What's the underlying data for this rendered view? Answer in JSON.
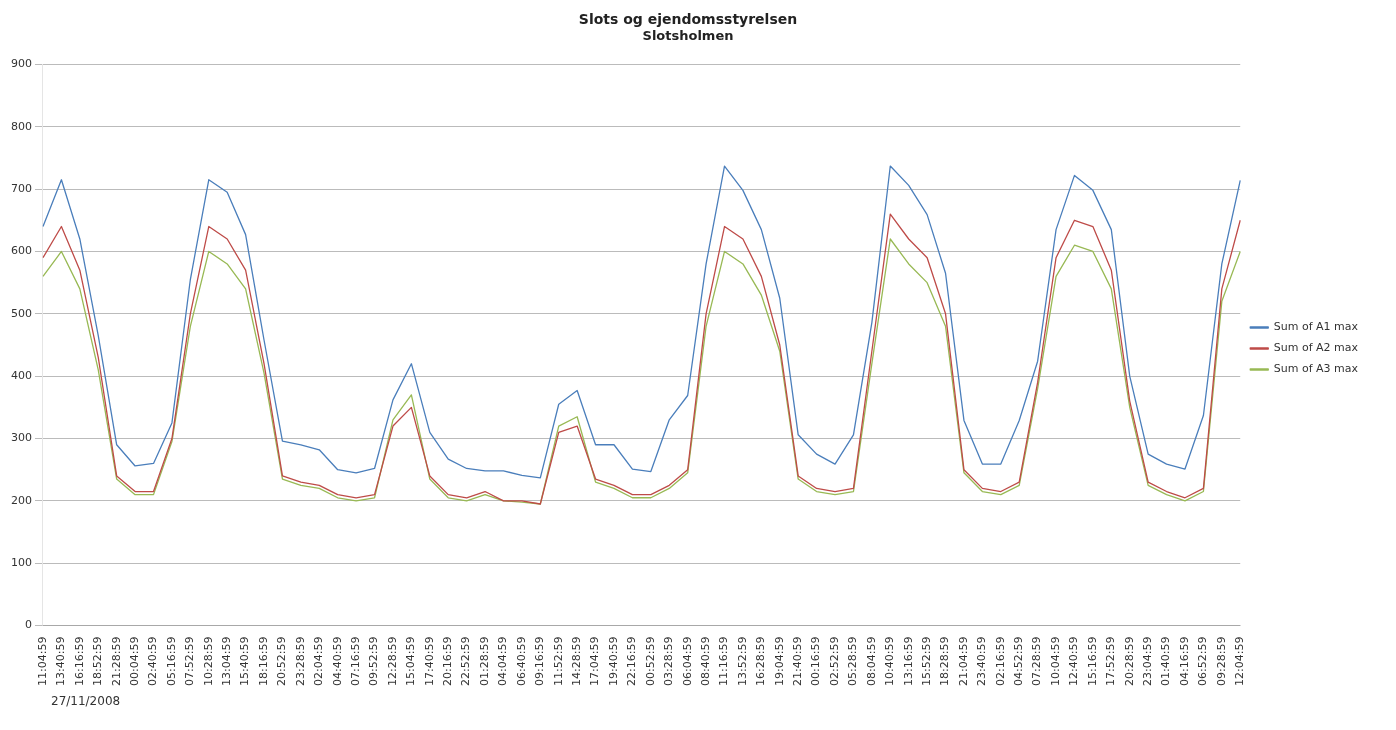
{
  "chart_data": {
    "type": "line",
    "title": "Slots og ejendomsstyrelsen",
    "subtitle": "Slotsholmen",
    "categories": [
      "11:04:59",
      "13:40:59",
      "16:16:59",
      "18:52:59",
      "21:28:59",
      "00:04:59",
      "02:40:59",
      "05:16:59",
      "07:52:59",
      "10:28:59",
      "13:04:59",
      "15:40:59",
      "18:16:59",
      "20:52:59",
      "23:28:59",
      "02:04:59",
      "04:40:59",
      "07:16:59",
      "09:52:59",
      "12:28:59",
      "15:04:59",
      "17:40:59",
      "20:16:59",
      "22:52:59",
      "01:28:59",
      "04:04:59",
      "06:40:59",
      "09:16:59",
      "11:52:59",
      "14:28:59",
      "17:04:59",
      "19:40:59",
      "22:16:59",
      "00:52:59",
      "03:28:59",
      "06:04:59",
      "08:40:59",
      "11:16:59",
      "13:52:59",
      "16:28:59",
      "19:04:59",
      "21:40:59",
      "00:16:59",
      "02:52:59",
      "05:28:59",
      "08:04:59",
      "10:40:59",
      "13:16:59",
      "15:52:59",
      "18:28:59",
      "21:04:59",
      "23:40:59",
      "02:16:59",
      "04:52:59",
      "07:28:59",
      "10:04:59",
      "12:40:59",
      "15:16:59",
      "17:52:59",
      "20:28:59",
      "23:04:59",
      "01:40:59",
      "04:16:59",
      "06:52:59",
      "09:28:59",
      "12:04:59"
    ],
    "series": [
      {
        "name": "Sum of A1 max",
        "color": "#4a7ebb",
        "values": [
          640,
          715,
          620,
          465,
          290,
          256,
          260,
          325,
          555,
          715,
          695,
          627,
          458,
          296,
          290,
          282,
          250,
          245,
          252,
          362,
          420,
          310,
          267,
          252,
          248,
          248,
          241,
          237,
          355,
          377,
          290,
          290,
          251,
          247,
          330,
          369,
          580,
          737,
          698,
          635,
          525,
          306,
          275,
          259,
          306,
          486,
          737,
          706,
          659,
          565,
          329,
          259,
          259,
          329,
          424,
          635,
          722,
          698,
          635,
          400,
          275,
          259,
          251,
          337,
          580,
          714
        ]
      },
      {
        "name": "Sum of A2 max",
        "color": "#be4b48",
        "values": [
          590,
          640,
          570,
          430,
          240,
          215,
          215,
          300,
          500,
          640,
          620,
          570,
          420,
          240,
          230,
          225,
          210,
          205,
          210,
          320,
          350,
          240,
          210,
          205,
          215,
          200,
          200,
          195,
          310,
          320,
          235,
          225,
          210,
          210,
          225,
          250,
          500,
          640,
          620,
          560,
          450,
          240,
          220,
          215,
          220,
          440,
          660,
          620,
          590,
          500,
          250,
          220,
          215,
          230,
          390,
          590,
          650,
          640,
          570,
          360,
          230,
          215,
          205,
          220,
          540,
          650
        ]
      },
      {
        "name": "Sum of A3 max",
        "color": "#98b954",
        "values": [
          560,
          600,
          540,
          410,
          235,
          210,
          210,
          295,
          480,
          600,
          580,
          540,
          405,
          235,
          225,
          220,
          205,
          200,
          205,
          330,
          370,
          235,
          205,
          200,
          210,
          200,
          198,
          195,
          320,
          335,
          230,
          220,
          205,
          205,
          220,
          245,
          480,
          600,
          580,
          530,
          440,
          235,
          215,
          210,
          215,
          420,
          620,
          580,
          550,
          480,
          245,
          215,
          210,
          225,
          380,
          560,
          610,
          600,
          540,
          350,
          225,
          210,
          200,
          215,
          520,
          600
        ]
      }
    ],
    "ylim": [
      0,
      900
    ],
    "yticks": [
      0,
      100,
      200,
      300,
      400,
      500,
      600,
      700,
      800,
      900
    ],
    "grid": "y",
    "legend": "right",
    "marker": "none",
    "line_style": "solid",
    "annotations": [
      "27/11/2008"
    ]
  }
}
